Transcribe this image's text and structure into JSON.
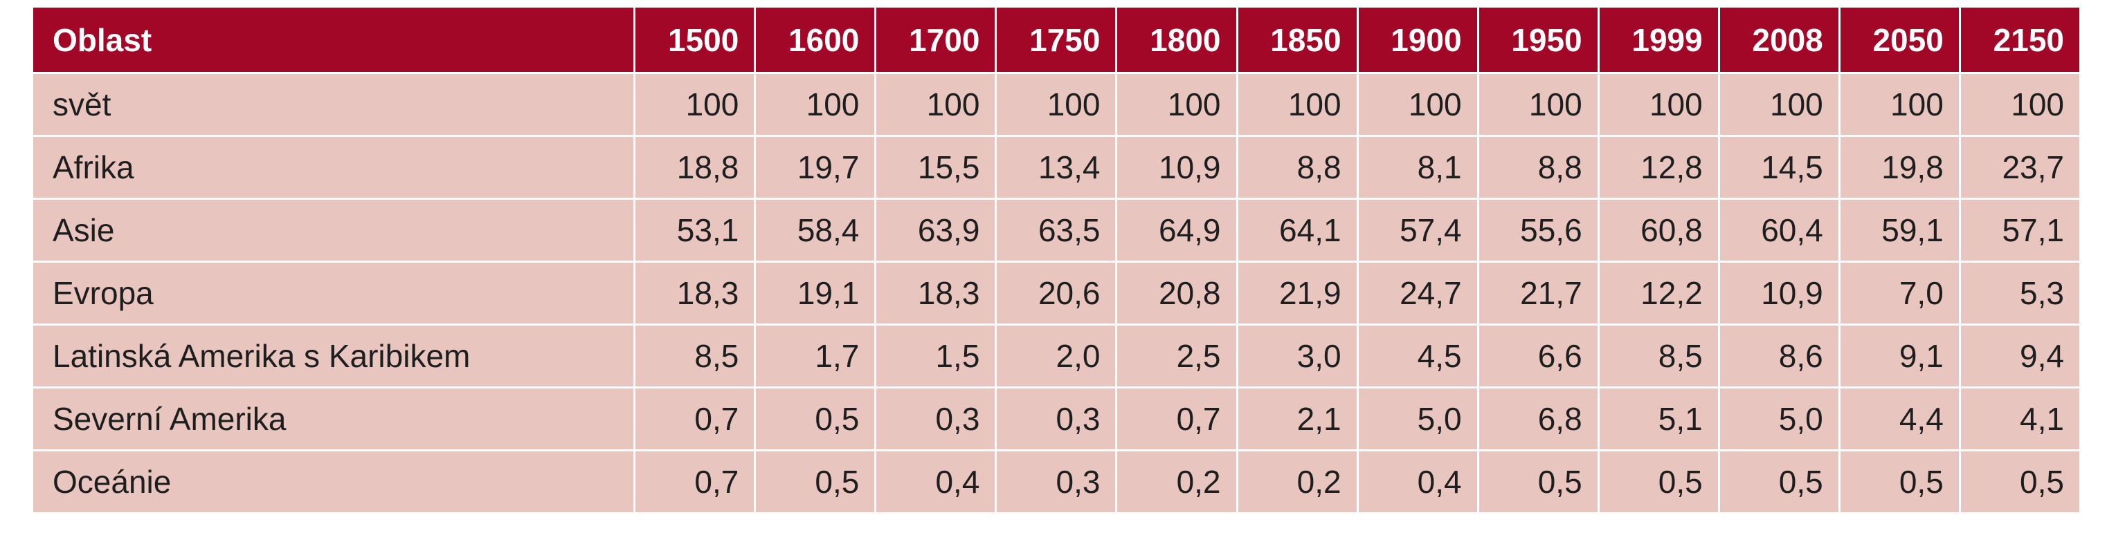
{
  "chart_data": {
    "type": "table",
    "columns": [
      "Oblast",
      "1500",
      "1600",
      "1700",
      "1750",
      "1800",
      "1850",
      "1900",
      "1950",
      "1999",
      "2008",
      "2050",
      "2150"
    ],
    "rows": [
      {
        "label": "svět",
        "values": [
          "100",
          "100",
          "100",
          "100",
          "100",
          "100",
          "100",
          "100",
          "100",
          "100",
          "100",
          "100"
        ]
      },
      {
        "label": "Afrika",
        "values": [
          "18,8",
          "19,7",
          "15,5",
          "13,4",
          "10,9",
          "8,8",
          "8,1",
          "8,8",
          "12,8",
          "14,5",
          "19,8",
          "23,7"
        ]
      },
      {
        "label": "Asie",
        "values": [
          "53,1",
          "58,4",
          "63,9",
          "63,5",
          "64,9",
          "64,1",
          "57,4",
          "55,6",
          "60,8",
          "60,4",
          "59,1",
          "57,1"
        ]
      },
      {
        "label": "Evropa",
        "values": [
          "18,3",
          "19,1",
          "18,3",
          "20,6",
          "20,8",
          "21,9",
          "24,7",
          "21,7",
          "12,2",
          "10,9",
          "7,0",
          "5,3"
        ]
      },
      {
        "label": "Latinská Amerika s Karibikem",
        "values": [
          "8,5",
          "1,7",
          "1,5",
          "2,0",
          "2,5",
          "3,0",
          "4,5",
          "6,6",
          "8,5",
          "8,6",
          "9,1",
          "9,4"
        ]
      },
      {
        "label": "Severní Amerika",
        "values": [
          "0,7",
          "0,5",
          "0,3",
          "0,3",
          "0,7",
          "2,1",
          "5,0",
          "6,8",
          "5,1",
          "5,0",
          "4,4",
          "4,1"
        ]
      },
      {
        "label": "Oceánie",
        "values": [
          "0,7",
          "0,5",
          "0,4",
          "0,3",
          "0,2",
          "0,2",
          "0,4",
          "0,5",
          "0,5",
          "0,5",
          "0,5",
          "0,5"
        ]
      }
    ],
    "colors": {
      "header_bg": "#a30727",
      "header_text": "#ffffff",
      "body_bg": "#e8c5be",
      "body_text": "#1e1e1e"
    }
  }
}
